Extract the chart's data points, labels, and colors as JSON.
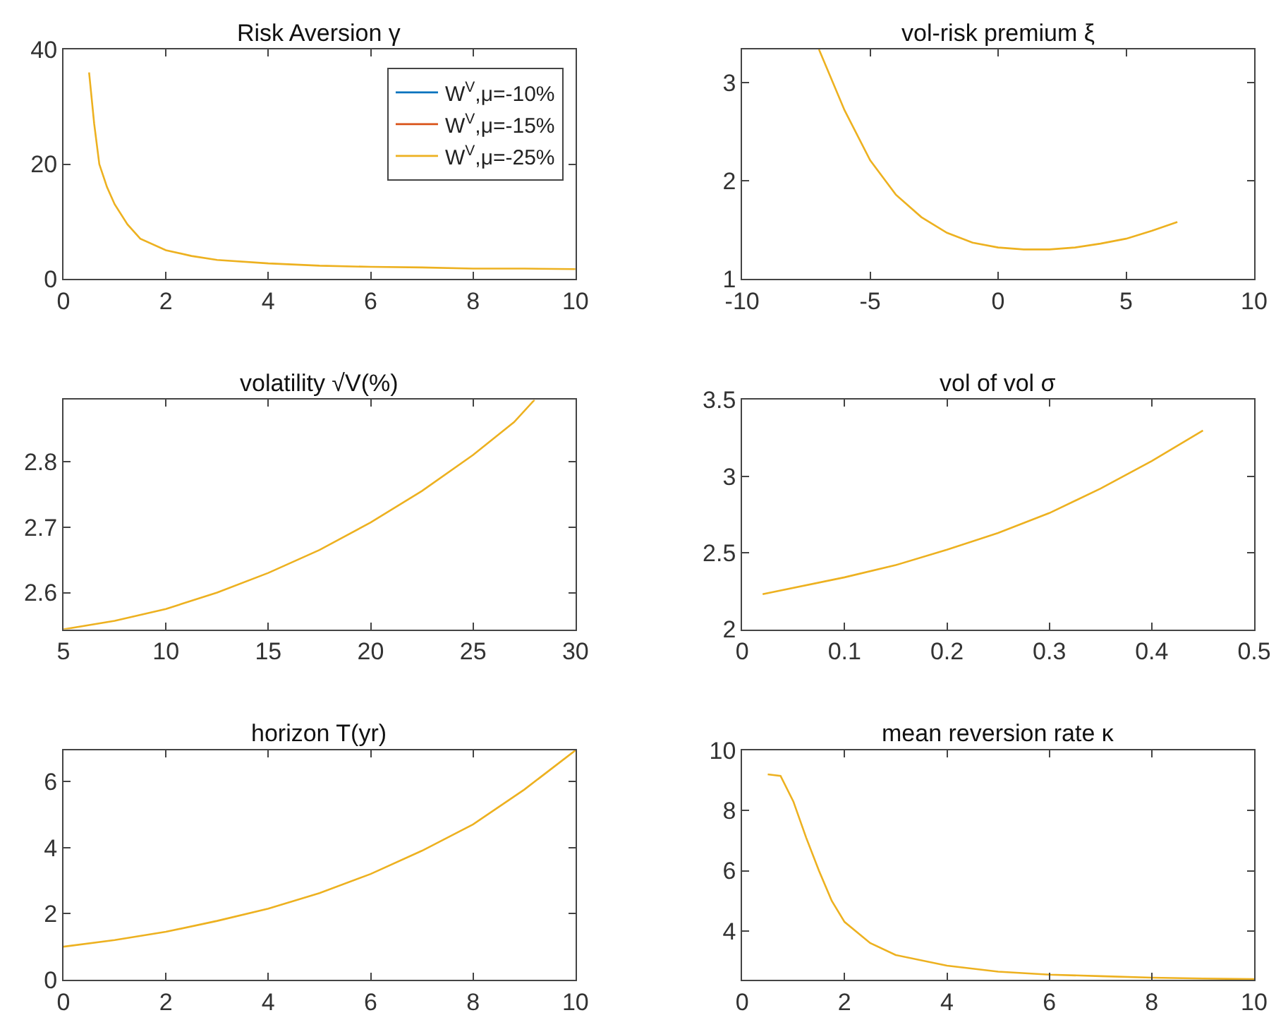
{
  "chart_data": [
    {
      "type": "line",
      "title": "Risk Aversion γ",
      "x": [
        0.5,
        0.6,
        0.7,
        0.85,
        1,
        1.25,
        1.5,
        2,
        2.5,
        3,
        4,
        5,
        6,
        7,
        8,
        9,
        10
      ],
      "xlim": [
        0,
        10
      ],
      "ylim": [
        0,
        40
      ],
      "xticks": [
        0,
        2,
        4,
        6,
        8,
        10
      ],
      "yticks": [
        0,
        20,
        40
      ],
      "legend": "top right",
      "series": [
        {
          "name": "W$^{V}$,μ=-10%",
          "color": "#0072bd",
          "values": [
            null,
            null,
            null,
            null,
            null,
            null,
            null,
            null,
            null,
            null,
            null,
            null,
            null,
            null,
            null,
            null,
            null
          ]
        },
        {
          "name": "W$^{V}$,μ=-15%",
          "color": "#d95319",
          "values": [
            null,
            null,
            null,
            null,
            null,
            null,
            null,
            null,
            null,
            null,
            null,
            null,
            null,
            null,
            null,
            null,
            null
          ]
        },
        {
          "name": "W$^{V}$,μ=-25%",
          "color": "#edb120",
          "values": [
            36,
            27,
            20,
            16,
            13,
            9.5,
            7,
            5,
            4,
            3.3,
            2.7,
            2.3,
            2.1,
            2.0,
            1.8,
            1.8,
            1.7
          ]
        }
      ]
    },
    {
      "type": "line",
      "title": "vol-risk premium ξ",
      "x": [
        -7,
        -6,
        -5,
        -4,
        -3,
        -2,
        -1,
        0,
        1,
        2,
        3,
        4,
        5,
        6,
        7
      ],
      "xlim": [
        -10,
        10
      ],
      "ylim": [
        1,
        3.34
      ],
      "xticks": [
        -10,
        -5,
        0,
        5,
        10
      ],
      "yticks": [
        1,
        2,
        3
      ],
      "series": [
        {
          "color": "#edb120",
          "values": [
            3.34,
            2.72,
            2.21,
            1.86,
            1.63,
            1.47,
            1.37,
            1.32,
            1.3,
            1.3,
            1.32,
            1.36,
            1.41,
            1.49,
            1.58
          ]
        }
      ]
    },
    {
      "type": "line",
      "title": "volatility √V(%)",
      "x": [
        5,
        7.5,
        10,
        12.5,
        15,
        17.5,
        20,
        22.5,
        25,
        27,
        28
      ],
      "xlim": [
        5,
        30
      ],
      "ylim": [
        2.544,
        2.894
      ],
      "xticks": [
        5,
        10,
        15,
        20,
        25,
        30
      ],
      "yticks": [
        2.6,
        2.7,
        2.8
      ],
      "series": [
        {
          "color": "#edb120",
          "values": [
            2.544,
            2.557,
            2.575,
            2.6,
            2.63,
            2.665,
            2.707,
            2.755,
            2.81,
            2.86,
            2.894
          ]
        }
      ]
    },
    {
      "type": "line",
      "title": "vol of vol σ",
      "x": [
        0.02,
        0.1,
        0.15,
        0.2,
        0.25,
        0.3,
        0.35,
        0.4,
        0.45
      ],
      "xlim": [
        0,
        0.5
      ],
      "ylim": [
        2,
        3.5
      ],
      "xticks": [
        0,
        0.1,
        0.2,
        0.3,
        0.4,
        0.5
      ],
      "yticks": [
        2,
        2.5,
        3,
        3.5
      ],
      "series": [
        {
          "color": "#edb120",
          "values": [
            2.23,
            2.34,
            2.42,
            2.52,
            2.63,
            2.76,
            2.92,
            3.1,
            3.3
          ]
        }
      ]
    },
    {
      "type": "line",
      "title": "horizon T(yr)",
      "x": [
        0,
        1,
        2,
        3,
        4,
        5,
        6,
        7,
        8,
        9,
        10
      ],
      "xlim": [
        0,
        10
      ],
      "ylim": [
        0,
        6.94
      ],
      "xticks": [
        0,
        2,
        4,
        6,
        8,
        10
      ],
      "yticks": [
        0,
        2,
        4,
        6
      ],
      "series": [
        {
          "color": "#edb120",
          "values": [
            1,
            1.2,
            1.45,
            1.78,
            2.15,
            2.62,
            3.2,
            3.9,
            4.7,
            5.75,
            6.94
          ]
        }
      ]
    },
    {
      "type": "line",
      "title": "mean reversion rate κ",
      "x": [
        0.5,
        0.75,
        1,
        1.25,
        1.5,
        1.75,
        2,
        2.5,
        3,
        4,
        5,
        6,
        7,
        8,
        9,
        10
      ],
      "xlim": [
        0,
        10
      ],
      "ylim": [
        2.38,
        10
      ],
      "xticks": [
        0,
        2,
        4,
        6,
        8,
        10
      ],
      "yticks": [
        4,
        6,
        8,
        10
      ],
      "series": [
        {
          "color": "#edb120",
          "values": [
            9.2,
            9.15,
            8.3,
            7.1,
            6.0,
            5.0,
            4.3,
            3.6,
            3.2,
            2.85,
            2.65,
            2.55,
            2.5,
            2.45,
            2.42,
            2.4
          ]
        }
      ]
    }
  ]
}
